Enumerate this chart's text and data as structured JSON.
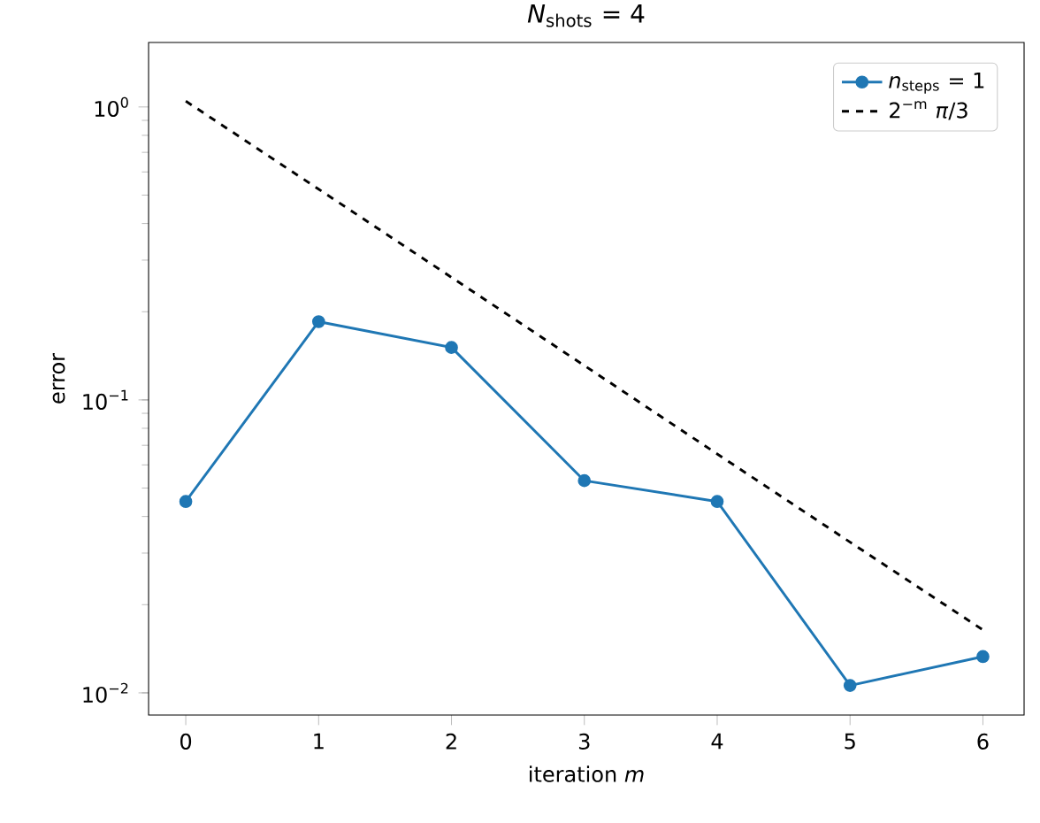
{
  "chart_data": {
    "type": "line",
    "title": "*N*$_{shots}$ = 4",
    "xlabel": "iteration *m*",
    "ylabel": "error",
    "log": "y",
    "x": [
      0,
      1,
      2,
      3,
      4,
      5,
      6
    ],
    "series": [
      {
        "name": "*n*$_{steps}$ = 1",
        "color": "#1f77b4",
        "values": [
          0.045,
          0.185,
          0.151,
          0.053,
          0.045,
          0.0106,
          0.0133
        ],
        "marker": "circle",
        "line_style": "solid"
      },
      {
        "name": "2$^{−m}$ *π*/3",
        "color": "#000000",
        "values": [
          1.047,
          0.524,
          0.262,
          0.131,
          0.0654,
          0.0327,
          0.0164
        ],
        "marker": "none",
        "line_style": "dashed"
      }
    ],
    "xlim": [
      -0.28,
      6.31
    ],
    "ylim": [
      0.0084,
      1.66
    ],
    "xticks": [
      0,
      1,
      2,
      3,
      4,
      5,
      6
    ],
    "yticks": [
      {
        "value": 0.01,
        "label": "10$^{−2}$"
      },
      {
        "value": 0.1,
        "label": "10$^{−1}$"
      },
      {
        "value": 1,
        "label": "10$^{0}$"
      }
    ],
    "grid": false,
    "legend": "top right"
  }
}
